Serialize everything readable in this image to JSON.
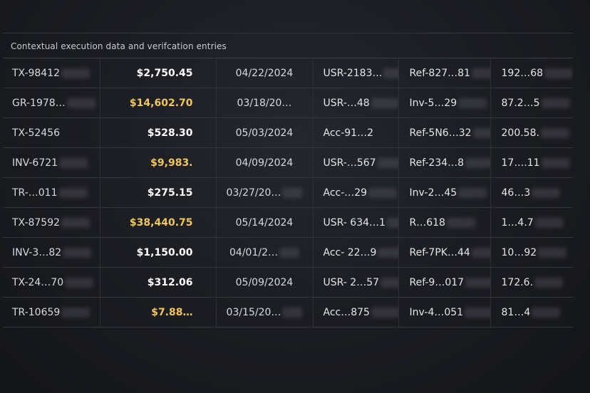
{
  "caption": "Contextual execution data and verifcation entries",
  "rows": [
    {
      "id": "TX-98412",
      "amount": "$2,750.45",
      "highlight": false,
      "date": "04/22/2024",
      "account": "USR-2183…",
      "ref": "Ref-827…81",
      "value": "192…68"
    },
    {
      "id": "GR-1978…",
      "amount": "$14,602.70",
      "highlight": true,
      "date": "03/18/20…",
      "account": "USR-…48",
      "ref": "Inv-5…29",
      "value": "87.2…5"
    },
    {
      "id": "TX-52456",
      "amount": "$528.30",
      "highlight": false,
      "date": "05/03/2024",
      "account": "Acc-91…2",
      "ref": "Ref-5N6…32",
      "value": "200.58."
    },
    {
      "id": "INV-6721",
      "amount": "$9,983.",
      "highlight": true,
      "date": "04/09/2024",
      "account": "USR-…567",
      "ref": "Ref-234…8",
      "value": "17….11"
    },
    {
      "id": "TR-…011",
      "amount": "$275.15",
      "highlight": false,
      "date": "03/27/20…",
      "account": "Acc-…29",
      "ref": "Inv-2…45",
      "value": "46…3"
    },
    {
      "id": "TX-87592",
      "amount": "$38,440.75",
      "highlight": true,
      "date": "05/14/2024",
      "account": "USR- 634…1",
      "ref": "R…618",
      "value": "1…4.7"
    },
    {
      "id": "INV-3…82",
      "amount": "$1,150.00",
      "highlight": false,
      "date": "04/01/2…",
      "account": "Acc- 22…9",
      "ref": "Ref-7PK…44",
      "value": "10…92"
    },
    {
      "id": "TX-24…70",
      "amount": "$312.06",
      "highlight": false,
      "date": "05/09/2024",
      "account": "USR- 2…57",
      "ref": "Ref-9…017",
      "value": "172.6."
    },
    {
      "id": "TR-10659",
      "amount": "$7.88…",
      "highlight": true,
      "date": "03/15/20…",
      "account": "Acc…875",
      "ref": "Inv-4…051",
      "value": "81…4"
    }
  ]
}
